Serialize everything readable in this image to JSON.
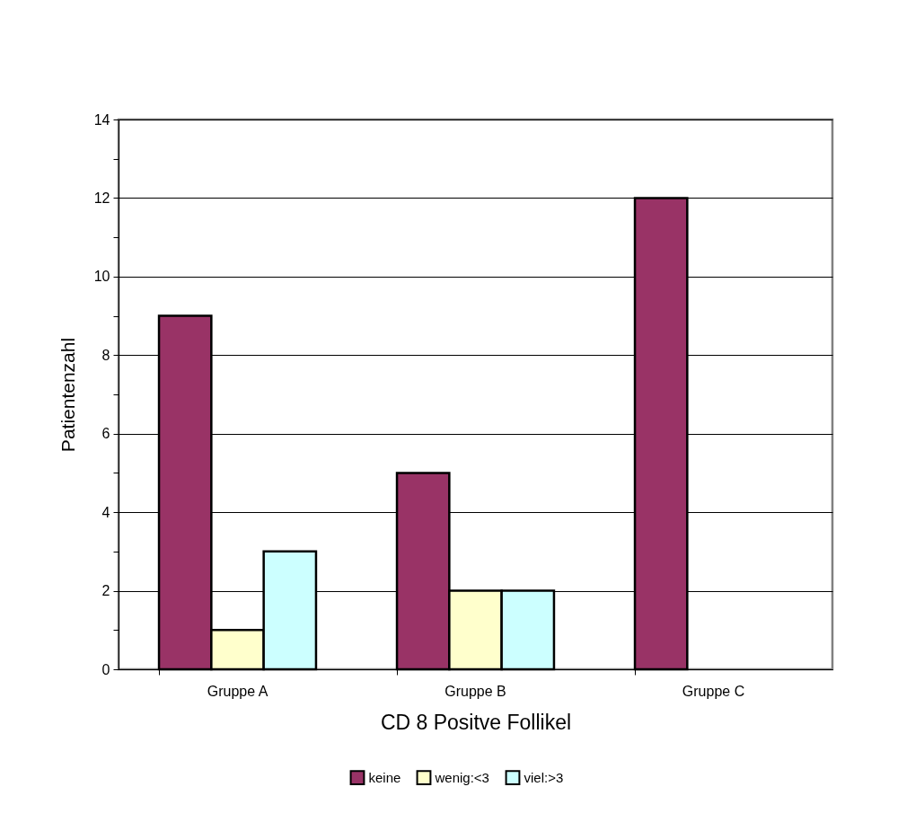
{
  "chart_data": {
    "type": "bar",
    "xlabel": "CD 8 Positve Follikel",
    "ylabel": "Patientenzahl",
    "categories": [
      "Gruppe A",
      "Gruppe B",
      "Gruppe C"
    ],
    "series": [
      {
        "name": "keine",
        "color": "#993366",
        "values": [
          9,
          5,
          12
        ]
      },
      {
        "name": "wenig:<3",
        "color": "#ffffcc",
        "values": [
          1,
          2,
          0
        ]
      },
      {
        "name": "viel:>3",
        "color": "#ccffff",
        "values": [
          3,
          2,
          0
        ]
      }
    ],
    "ylim": [
      0,
      14
    ],
    "yticks": [
      0,
      {
        "value": 1,
        "label": null
      },
      2,
      {
        "value": 3,
        "label": null
      },
      4,
      {
        "value": 5,
        "label": null
      },
      6,
      {
        "value": 7,
        "label": null
      },
      8,
      {
        "value": 9,
        "label": null
      },
      10,
      {
        "value": 11,
        "label": null
      },
      12,
      {
        "value": 13,
        "label": null
      },
      14
    ],
    "grid": "y",
    "legend": "bottom"
  }
}
